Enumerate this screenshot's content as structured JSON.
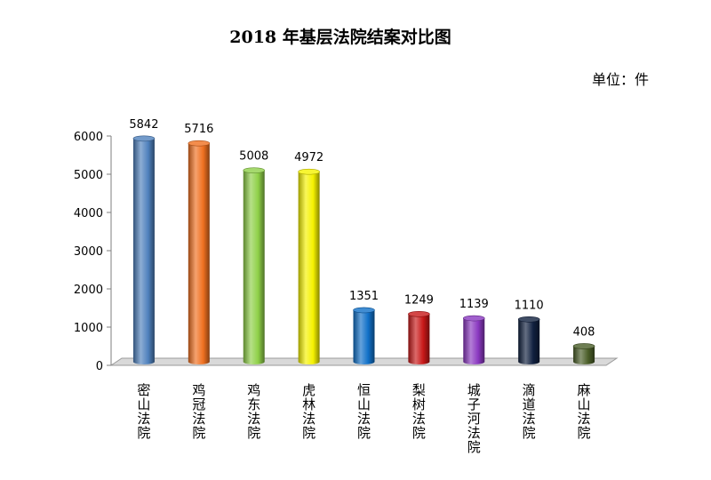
{
  "chart_data": {
    "type": "bar",
    "title": "2018 年基层法院结案对比图",
    "unit_label": "单位：件",
    "categories": [
      "密山法院",
      "鸡冠法院",
      "鸡东法院",
      "虎林法院",
      "恒山法院",
      "梨树法院",
      "城子河法院",
      "滴道法院",
      "麻山法院"
    ],
    "values": [
      5842,
      5716,
      5008,
      4972,
      1351,
      1249,
      1139,
      1110,
      408
    ],
    "colors": [
      "#4f81bd",
      "#f07020",
      "#8fd048",
      "#f5f200",
      "#1070c8",
      "#c81818",
      "#8a38c0",
      "#10203f",
      "#4a5e28"
    ],
    "ylim": [
      0,
      6000
    ],
    "yticks": [
      0,
      1000,
      2000,
      3000,
      4000,
      5000,
      6000
    ],
    "xlabel": "",
    "ylabel": "",
    "grid": false,
    "legend": "none"
  }
}
